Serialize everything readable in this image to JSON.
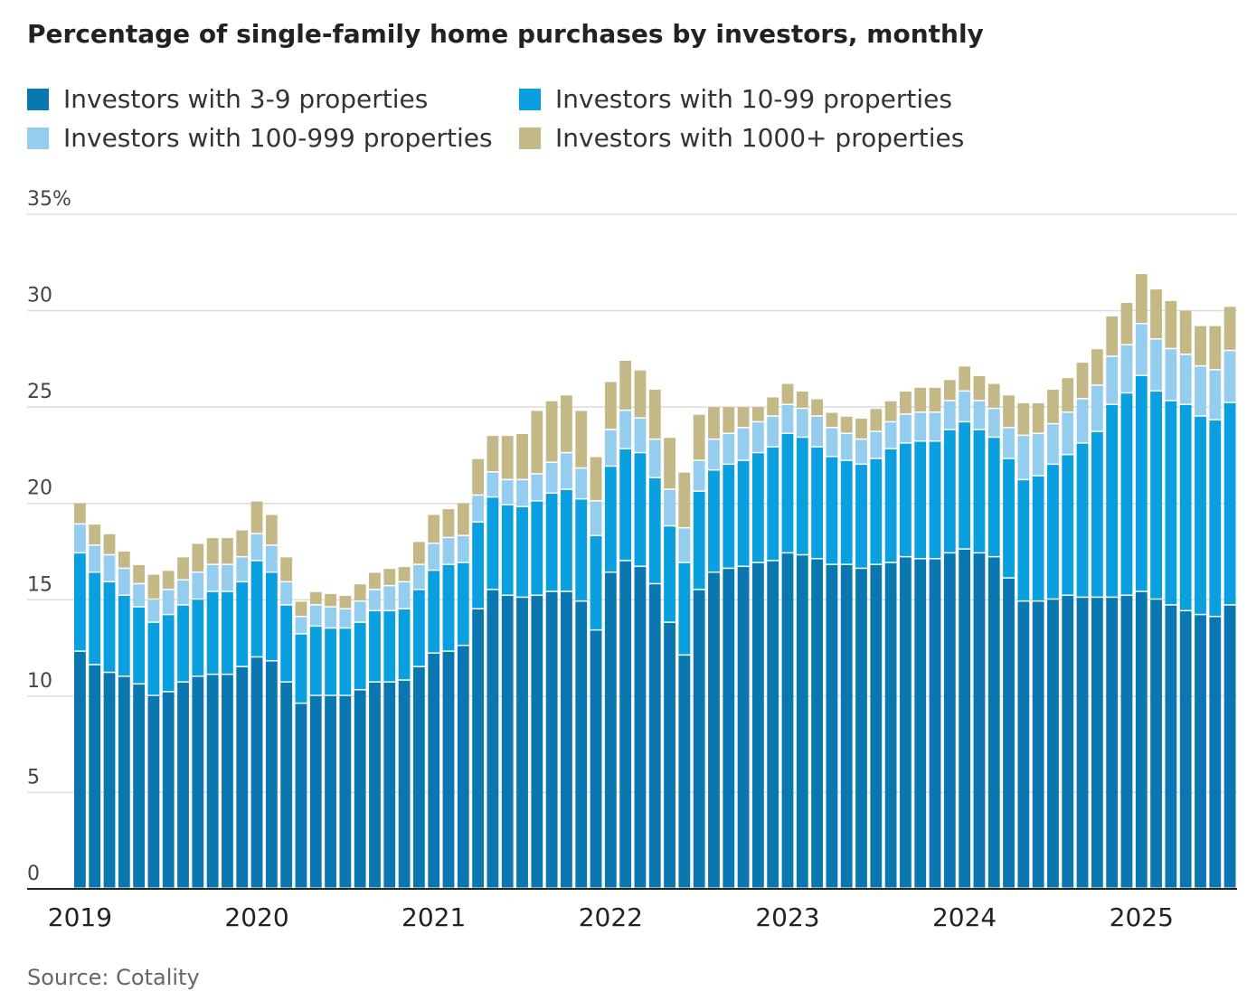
{
  "chart_data": {
    "type": "stacked-bar",
    "title": "Percentage of single-family home purchases by investors, monthly",
    "source": "Source: Cotality",
    "categories": [
      "2019",
      null,
      null,
      null,
      null,
      null,
      null,
      null,
      null,
      null,
      null,
      null,
      "2020",
      null,
      null,
      null,
      null,
      null,
      null,
      null,
      null,
      null,
      null,
      null,
      "2021",
      null,
      null,
      null,
      null,
      null,
      null,
      null,
      null,
      null,
      null,
      null,
      "2022",
      null,
      null,
      null,
      null,
      null,
      null,
      null,
      null,
      null,
      null,
      null,
      "2023",
      null,
      null,
      null,
      null,
      null,
      null,
      null,
      null,
      null,
      null,
      null,
      "2024",
      null,
      null,
      null,
      null,
      null,
      null,
      null,
      null,
      null,
      null,
      null,
      "2025",
      null,
      null,
      null,
      null,
      null,
      null
    ],
    "series": [
      {
        "name": "Investors with 3-9 properties",
        "color": "#0b77b0",
        "values": [
          12.3,
          11.6,
          11.2,
          11.0,
          10.6,
          10.0,
          10.2,
          10.7,
          11.0,
          11.1,
          11.1,
          11.5,
          12.0,
          11.8,
          10.7,
          9.6,
          10.0,
          10.0,
          10.0,
          10.3,
          10.7,
          10.7,
          10.8,
          11.5,
          12.2,
          12.3,
          12.6,
          14.5,
          15.5,
          15.2,
          15.1,
          15.2,
          15.4,
          15.4,
          14.9,
          13.4,
          16.4,
          17.0,
          16.7,
          15.8,
          13.8,
          12.1,
          15.5,
          16.4,
          16.6,
          16.7,
          16.9,
          17.0,
          17.4,
          17.3,
          17.1,
          16.8,
          16.8,
          16.6,
          16.8,
          16.9,
          17.2,
          17.1,
          17.1,
          17.4,
          17.6,
          17.4,
          17.2,
          16.1,
          14.9,
          14.9,
          15.0,
          15.2,
          15.1,
          15.1,
          15.1,
          15.2,
          15.4,
          15.0,
          14.7,
          14.4,
          14.2,
          14.1,
          14.7
        ]
      },
      {
        "name": "Investors with 10-99 properties",
        "color": "#0a9fde",
        "values": [
          5.1,
          4.8,
          4.7,
          4.2,
          4.0,
          3.8,
          4.0,
          4.0,
          4.0,
          4.3,
          4.3,
          4.4,
          5.0,
          4.6,
          4.0,
          3.6,
          3.6,
          3.5,
          3.5,
          3.5,
          3.7,
          3.7,
          3.7,
          4.0,
          4.3,
          4.5,
          4.3,
          4.5,
          4.8,
          4.7,
          4.7,
          4.9,
          5.1,
          5.3,
          5.3,
          4.9,
          5.5,
          5.8,
          5.9,
          5.5,
          5.0,
          4.8,
          5.1,
          5.3,
          5.4,
          5.5,
          5.7,
          5.9,
          6.2,
          6.1,
          5.8,
          5.6,
          5.4,
          5.4,
          5.5,
          5.9,
          5.9,
          6.1,
          6.1,
          6.4,
          6.6,
          6.4,
          6.2,
          6.2,
          6.3,
          6.5,
          7.0,
          7.3,
          8.0,
          8.6,
          10.0,
          10.5,
          11.2,
          10.8,
          10.6,
          10.7,
          10.3,
          10.2,
          10.5
        ]
      },
      {
        "name": "Investors with 100-999 properties",
        "color": "#95cdef",
        "values": [
          1.5,
          1.4,
          1.4,
          1.4,
          1.2,
          1.2,
          1.3,
          1.3,
          1.4,
          1.4,
          1.4,
          1.3,
          1.4,
          1.4,
          1.2,
          0.9,
          1.1,
          1.1,
          1.0,
          1.1,
          1.1,
          1.3,
          1.4,
          1.3,
          1.4,
          1.4,
          1.4,
          1.4,
          1.3,
          1.3,
          1.4,
          1.4,
          1.6,
          1.9,
          1.6,
          1.8,
          1.9,
          2.0,
          1.8,
          2.0,
          1.9,
          1.8,
          1.6,
          1.6,
          1.6,
          1.7,
          1.6,
          1.6,
          1.5,
          1.5,
          1.6,
          1.5,
          1.4,
          1.3,
          1.4,
          1.4,
          1.5,
          1.5,
          1.5,
          1.5,
          1.6,
          1.5,
          1.5,
          1.6,
          2.3,
          2.2,
          2.1,
          2.2,
          2.3,
          2.4,
          2.5,
          2.5,
          2.7,
          2.7,
          2.7,
          2.6,
          2.6,
          2.6,
          2.7
        ]
      },
      {
        "name": "Investors with 1000+ properties",
        "color": "#c4b986",
        "values": [
          1.1,
          1.1,
          1.1,
          0.9,
          1.0,
          1.3,
          1.0,
          1.2,
          1.5,
          1.4,
          1.4,
          1.4,
          1.7,
          1.6,
          1.3,
          0.8,
          0.7,
          0.7,
          0.7,
          0.9,
          0.9,
          0.9,
          0.8,
          1.2,
          1.5,
          1.5,
          1.7,
          1.9,
          1.9,
          2.3,
          2.4,
          3.3,
          3.2,
          3.0,
          3.0,
          2.3,
          2.5,
          2.6,
          2.5,
          2.6,
          2.7,
          2.9,
          2.4,
          1.7,
          1.4,
          1.1,
          0.8,
          1.0,
          1.1,
          0.9,
          0.9,
          0.8,
          0.9,
          1.1,
          1.2,
          1.1,
          1.2,
          1.3,
          1.3,
          1.1,
          1.3,
          1.3,
          1.3,
          1.7,
          1.7,
          1.6,
          1.8,
          1.8,
          1.9,
          1.9,
          2.1,
          2.2,
          2.6,
          2.6,
          2.5,
          2.3,
          2.1,
          2.3,
          2.3
        ]
      }
    ],
    "ylim": [
      0,
      35
    ],
    "yticks": [
      0,
      5,
      10,
      15,
      20,
      25,
      30,
      {
        "value": 35,
        "label": "35%"
      }
    ],
    "grid": true
  }
}
